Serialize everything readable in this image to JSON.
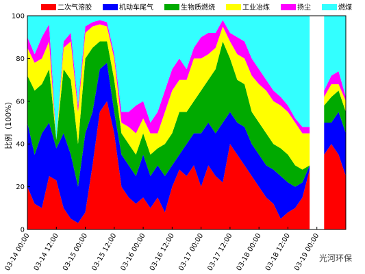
{
  "chart_data": {
    "type": "stacked_area",
    "y_label": "比例（100%）",
    "watermark": "光河环保",
    "categories": [
      "03-14 00:00",
      null,
      null,
      null,
      "03-14 12:00",
      null,
      null,
      null,
      "03-15 00:00",
      null,
      null,
      null,
      "03-15 12:00",
      null,
      null,
      null,
      "03-16 00:00",
      null,
      null,
      null,
      "03-16 12:00",
      null,
      null,
      null,
      "03-17 00:00",
      null,
      null,
      null,
      "03-17 12:00",
      null,
      null,
      null,
      "03-18 00:00",
      null,
      null,
      null,
      "03-18 12:00",
      null,
      null,
      null,
      "03-19 00:00",
      null,
      null,
      null,
      null
    ],
    "ylim": [
      0,
      100
    ],
    "yticks": [
      0,
      20,
      40,
      60,
      80,
      100
    ],
    "legend": "top",
    "series": [
      {
        "name": "二次气溶胶",
        "color": "#ff0000",
        "values": [
          20,
          12,
          10,
          25,
          23,
          10,
          5,
          3,
          8,
          30,
          55,
          60,
          45,
          20,
          15,
          12,
          15,
          10,
          15,
          8,
          20,
          28,
          25,
          30,
          20,
          30,
          25,
          22,
          40,
          35,
          30,
          25,
          20,
          15,
          12,
          5,
          8,
          10,
          15,
          28,
          null,
          35,
          40,
          35,
          25
        ]
      },
      {
        "name": "机动车尾气",
        "color": "#0000ff",
        "values": [
          30,
          23,
          35,
          25,
          15,
          35,
          30,
          17,
          37,
          25,
          20,
          18,
          10,
          15,
          15,
          13,
          20,
          15,
          15,
          17,
          10,
          7,
          15,
          15,
          25,
          20,
          20,
          28,
          15,
          15,
          18,
          15,
          15,
          15,
          16,
          20,
          14,
          10,
          7,
          2,
          null,
          15,
          10,
          20,
          20
        ]
      },
      {
        "name": "生物质燃烧",
        "color": "#00aa00",
        "values": [
          22,
          30,
          23,
          25,
          4,
          30,
          35,
          20,
          35,
          30,
          13,
          10,
          15,
          10,
          10,
          10,
          10,
          10,
          8,
          15,
          15,
          20,
          15,
          15,
          20,
          20,
          30,
          38,
          25,
          20,
          20,
          15,
          15,
          15,
          12,
          13,
          13,
          10,
          6,
          0,
          null,
          8,
          12,
          10,
          10
        ]
      },
      {
        "name": "工业冶炼",
        "color": "#ffff00",
        "values": [
          13,
          13,
          12,
          13,
          0,
          10,
          18,
          15,
          12,
          10,
          8,
          7,
          10,
          5,
          8,
          10,
          7,
          10,
          7,
          15,
          20,
          15,
          15,
          20,
          15,
          12,
          10,
          7,
          8,
          12,
          12,
          17,
          18,
          20,
          20,
          20,
          20,
          20,
          17,
          15,
          null,
          4,
          6,
          3,
          5
        ]
      },
      {
        "name": "扬尘",
        "color": "#ff00ff",
        "values": [
          5,
          4,
          10,
          8,
          0,
          3,
          4,
          3,
          3,
          2,
          2,
          2,
          2,
          5,
          7,
          13,
          8,
          5,
          10,
          10,
          10,
          10,
          5,
          5,
          10,
          10,
          7,
          3,
          4,
          8,
          8,
          8,
          7,
          5,
          5,
          4,
          3,
          2,
          3,
          3,
          null,
          3,
          4,
          6,
          2
        ]
      },
      {
        "name": "燃煤",
        "color": "#33ffff",
        "values": [
          10,
          18,
          10,
          4,
          58,
          12,
          8,
          42,
          5,
          3,
          2,
          3,
          18,
          45,
          45,
          42,
          40,
          50,
          45,
          35,
          25,
          20,
          25,
          15,
          10,
          8,
          8,
          2,
          8,
          10,
          12,
          20,
          25,
          30,
          35,
          38,
          42,
          48,
          52,
          52,
          null,
          35,
          28,
          26,
          38
        ]
      }
    ]
  }
}
